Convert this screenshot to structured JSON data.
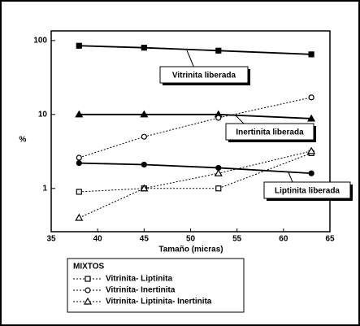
{
  "chart_data": {
    "type": "line",
    "log_y": true,
    "x_label": "Tamaño (micras)",
    "y_label": "%",
    "x": [
      38,
      45,
      53,
      63
    ],
    "xlim": [
      35,
      65
    ],
    "xticks": [
      35,
      40,
      45,
      50,
      55,
      60,
      65
    ],
    "ylim": [
      0.26,
      135
    ],
    "yticks": [
      1,
      10,
      100
    ],
    "legend_title": "MIXTOS",
    "series": [
      {
        "name": "Vitrinita liberada",
        "color": "#000000",
        "marker": "square",
        "filled": true,
        "dashed": false,
        "values": [
          85,
          80,
          73,
          65
        ]
      },
      {
        "name": "Inertinita liberada",
        "color": "#000000",
        "marker": "triangle",
        "filled": true,
        "dashed": false,
        "values": [
          10,
          10,
          10,
          8.8
        ]
      },
      {
        "name": "Liptinita liberada",
        "color": "#000000",
        "marker": "circle",
        "filled": true,
        "dashed": false,
        "values": [
          2.2,
          2.1,
          1.9,
          1.6
        ]
      },
      {
        "name": "Vitrinita- Liptinita",
        "color": "#000000",
        "marker": "square",
        "filled": false,
        "dashed": true,
        "values": [
          0.9,
          1.0,
          1.0,
          3.0
        ]
      },
      {
        "name": "Vitrinita- Inertinita",
        "color": "#000000",
        "marker": "circle",
        "filled": false,
        "dashed": true,
        "values": [
          2.6,
          5,
          9,
          17
        ]
      },
      {
        "name": "Vitrinita- Liptinita- Inertinita",
        "color": "#000000",
        "marker": "triangle",
        "filled": false,
        "dashed": true,
        "values": [
          0.4,
          1.0,
          1.6,
          3.2
        ]
      }
    ]
  }
}
